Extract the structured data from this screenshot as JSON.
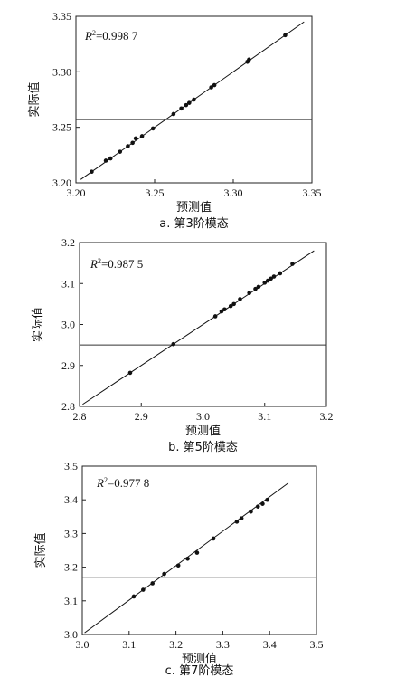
{
  "chart_data": [
    {
      "type": "scatter",
      "caption": "a. 第3阶模态",
      "xlabel": "预测值",
      "ylabel": "实际值",
      "r2_label": "R",
      "r2_sup": "2",
      "r2_value": "=0.998 7",
      "xlim": [
        3.2,
        3.35
      ],
      "ylim": [
        3.2,
        3.35
      ],
      "xticks": [
        3.2,
        3.25,
        3.3,
        3.35
      ],
      "yticks": [
        3.2,
        3.25,
        3.3,
        3.35
      ],
      "xtick_labels": [
        "3.20",
        "3.25",
        "3.30",
        "3.35"
      ],
      "ytick_labels": [
        "3.20",
        "3.25",
        "3.30",
        "3.35"
      ],
      "hline_y": 3.257,
      "fit_line": [
        [
          3.203,
          3.203
        ],
        [
          3.345,
          3.345
        ]
      ],
      "points": {
        "x": [
          3.21,
          3.219,
          3.222,
          3.228,
          3.233,
          3.236,
          3.238,
          3.242,
          3.249,
          3.262,
          3.267,
          3.27,
          3.272,
          3.275,
          3.286,
          3.288,
          3.309,
          3.31,
          3.333
        ],
        "y": [
          3.21,
          3.22,
          3.222,
          3.228,
          3.233,
          3.236,
          3.24,
          3.242,
          3.249,
          3.262,
          3.267,
          3.27,
          3.272,
          3.275,
          3.286,
          3.288,
          3.309,
          3.311,
          3.333
        ]
      }
    },
    {
      "type": "scatter",
      "caption": "b. 第5阶模态",
      "xlabel": "预测值",
      "ylabel": "实际值",
      "r2_label": "R",
      "r2_sup": "2",
      "r2_value": "=0.987 5",
      "xlim": [
        2.8,
        3.2
      ],
      "ylim": [
        2.8,
        3.2
      ],
      "xticks": [
        2.8,
        2.9,
        3.0,
        3.1,
        3.2
      ],
      "yticks": [
        2.8,
        2.9,
        3.0,
        3.1,
        3.2
      ],
      "xtick_labels": [
        "2.8",
        "2.9",
        "3.0",
        "3.1",
        "3.2"
      ],
      "ytick_labels": [
        "2.8",
        "2.9",
        "3.0",
        "3.1",
        "3.2"
      ],
      "hline_y": 2.95,
      "fit_line": [
        [
          2.805,
          2.805
        ],
        [
          3.18,
          3.18
        ]
      ],
      "points": {
        "x": [
          2.882,
          2.952,
          3.02,
          3.03,
          3.035,
          3.045,
          3.05,
          3.06,
          3.075,
          3.085,
          3.09,
          3.1,
          3.105,
          3.11,
          3.115,
          3.125,
          3.145
        ],
        "y": [
          2.882,
          2.952,
          3.02,
          3.032,
          3.037,
          3.045,
          3.05,
          3.062,
          3.077,
          3.087,
          3.092,
          3.102,
          3.107,
          3.112,
          3.117,
          3.125,
          3.148
        ]
      }
    },
    {
      "type": "scatter",
      "caption": "c. 第7阶模态",
      "xlabel": "预测值",
      "ylabel": "实际值",
      "r2_label": "R",
      "r2_sup": "2",
      "r2_value": "=0.977 8",
      "xlim": [
        3.0,
        3.5
      ],
      "ylim": [
        3.0,
        3.5
      ],
      "xticks": [
        3.0,
        3.1,
        3.2,
        3.3,
        3.4,
        3.5
      ],
      "yticks": [
        3.0,
        3.1,
        3.2,
        3.3,
        3.4,
        3.5
      ],
      "xtick_labels": [
        "3.0",
        "3.1",
        "3.2",
        "3.3",
        "3.4",
        "3.5"
      ],
      "ytick_labels": [
        "3.0",
        "3.1",
        "3.2",
        "3.3",
        "3.4",
        "3.5"
      ],
      "hline_y": 3.17,
      "fit_line": [
        [
          3.005,
          3.005
        ],
        [
          3.44,
          3.45
        ]
      ],
      "points": {
        "x": [
          3.11,
          3.13,
          3.15,
          3.175,
          3.205,
          3.225,
          3.245,
          3.28,
          3.33,
          3.34,
          3.36,
          3.375,
          3.385,
          3.395
        ],
        "y": [
          3.113,
          3.133,
          3.152,
          3.18,
          3.205,
          3.225,
          3.243,
          3.285,
          3.335,
          3.345,
          3.365,
          3.38,
          3.388,
          3.4
        ]
      }
    }
  ]
}
